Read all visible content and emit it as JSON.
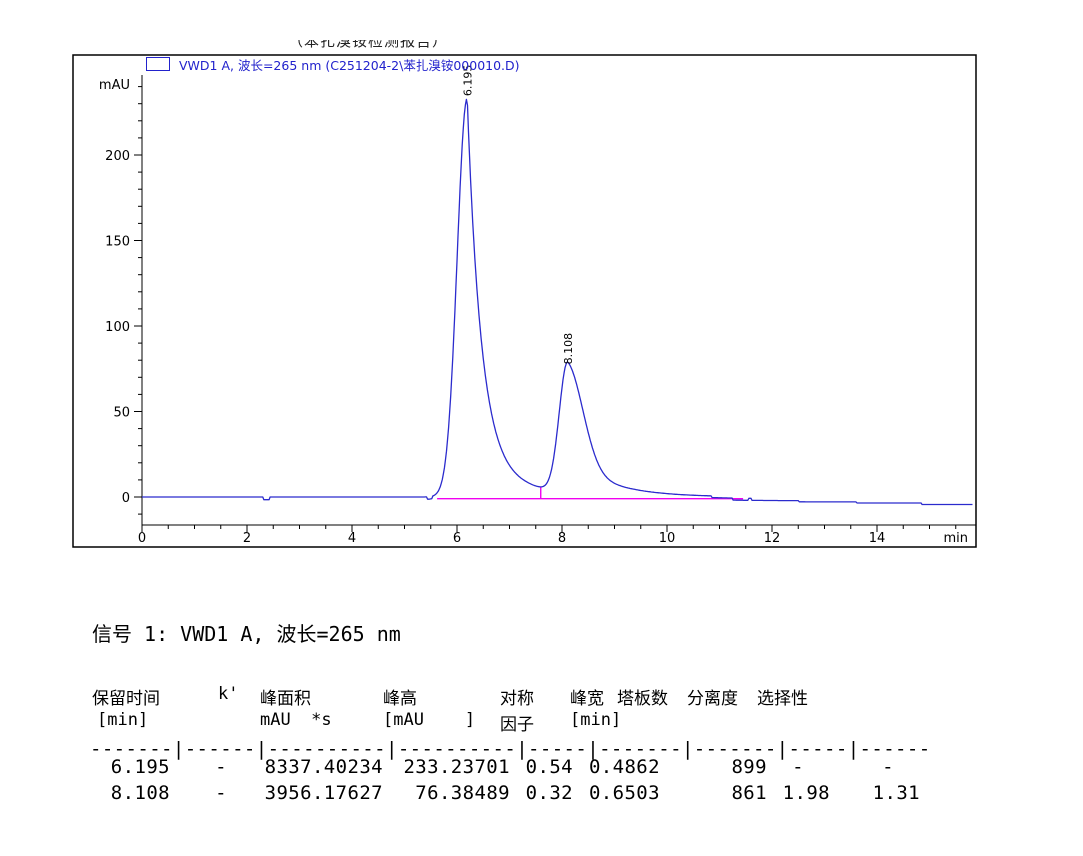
{
  "clipped_header": {
    "text": "（苯扎溴铵检测报告）"
  },
  "chart": {
    "legend": {
      "label": "VWD1 A, 波长=265 nm (C251204-2\\苯扎溴铵000010.D)"
    },
    "colors": {
      "trace": "#2b2bcd",
      "baseline": "#f000f0",
      "axis": "#000000",
      "legend_text": "#2222cc"
    }
  },
  "chart_data": {
    "type": "line",
    "title": "",
    "xlabel": "min",
    "ylabel": "mAU",
    "xlim": [
      0,
      15.8
    ],
    "ylim": [
      -16,
      247
    ],
    "x_ticks": [
      0,
      2,
      4,
      6,
      8,
      10,
      12,
      14
    ],
    "y_ticks": [
      0,
      50,
      100,
      150,
      200
    ],
    "grid": false,
    "series": [
      {
        "name": "VWD1 A, 波长=265 nm",
        "kind": "chromatogram"
      }
    ],
    "peaks": [
      {
        "rt_min": 6.195,
        "height_mau": 233.23701,
        "area_mau_s": 8337.40234,
        "label": "6.195"
      },
      {
        "rt_min": 8.108,
        "height_mau": 76.38489,
        "area_mau_s": 3956.17627,
        "label": "8.108"
      }
    ],
    "integration_baseline": {
      "from_min": 5.62,
      "to_min": 11.45,
      "level_mau": -1
    }
  },
  "signal_line": "信号 1: VWD1 A, 波长=265 nm",
  "peak_table": {
    "header_row1": [
      "保留时间",
      "k'",
      "峰面积",
      "峰高",
      "对称",
      "峰宽",
      "塔板数",
      "分离度",
      "选择性"
    ],
    "header_row2": [
      "[min]",
      "mAU  *s",
      "[mAU    ]",
      "因子",
      "[min]"
    ],
    "separator": "-------|------|----------|----------|-----|-------|-------|-----|------",
    "rows": [
      [
        "6.195",
        "-",
        "8337.40234",
        "233.23701",
        "0.54",
        "0.4862",
        "899",
        "-",
        "-"
      ],
      [
        "8.108",
        "-",
        "3956.17627",
        "76.38489",
        "0.32",
        "0.6503",
        "861",
        "1.98",
        "1.31"
      ]
    ]
  }
}
